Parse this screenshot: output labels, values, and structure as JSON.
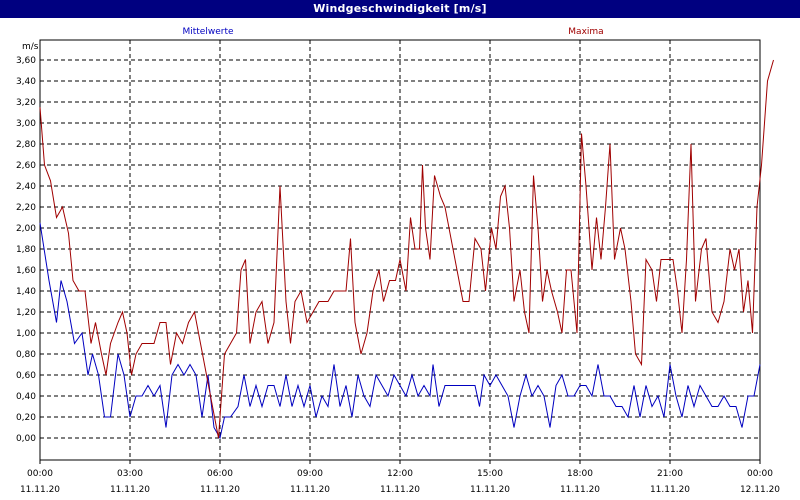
{
  "window": {
    "title": "Windgeschwindigkeit [m/s]"
  },
  "chart_data": {
    "type": "line",
    "title": "Windgeschwindigkeit [m/s]",
    "ylabel": "m/s",
    "ylim": [
      0,
      3.6
    ],
    "xlim": [
      0,
      24
    ],
    "grid": true,
    "legend": "top",
    "y_ticks": [
      "0,00",
      "0,20",
      "0,40",
      "0,60",
      "0,80",
      "1,00",
      "1,20",
      "1,40",
      "1,60",
      "1,80",
      "2,00",
      "2,20",
      "2,40",
      "2,60",
      "2,80",
      "3,00",
      "3,20",
      "3,40",
      "3,60"
    ],
    "x_ticks": [
      {
        "time": "00:00",
        "date": "11.11.20"
      },
      {
        "time": "03:00",
        "date": "11.11.20"
      },
      {
        "time": "06:00",
        "date": "11.11.20"
      },
      {
        "time": "09:00",
        "date": "11.11.20"
      },
      {
        "time": "12:00",
        "date": "11.11.20"
      },
      {
        "time": "15:00",
        "date": "11.11.20"
      },
      {
        "time": "18:00",
        "date": "11.11.20"
      },
      {
        "time": "21:00",
        "date": "11.11.20"
      },
      {
        "time": "00:00",
        "date": "12.11.20"
      }
    ],
    "series": [
      {
        "name": "Mittelwerte",
        "color": "#0000c0",
        "points": [
          [
            0,
            2.05
          ],
          [
            0.3,
            1.5
          ],
          [
            0.55,
            1.1
          ],
          [
            0.7,
            1.5
          ],
          [
            0.9,
            1.3
          ],
          [
            1.15,
            0.9
          ],
          [
            1.4,
            1.0
          ],
          [
            1.6,
            0.6
          ],
          [
            1.75,
            0.8
          ],
          [
            1.95,
            0.6
          ],
          [
            2.15,
            0.2
          ],
          [
            2.35,
            0.2
          ],
          [
            2.6,
            0.8
          ],
          [
            2.8,
            0.6
          ],
          [
            3.0,
            0.2
          ],
          [
            3.2,
            0.4
          ],
          [
            3.4,
            0.4
          ],
          [
            3.6,
            0.5
          ],
          [
            3.8,
            0.4
          ],
          [
            4.0,
            0.5
          ],
          [
            4.2,
            0.1
          ],
          [
            4.4,
            0.6
          ],
          [
            4.6,
            0.7
          ],
          [
            4.8,
            0.6
          ],
          [
            5.0,
            0.7
          ],
          [
            5.2,
            0.6
          ],
          [
            5.4,
            0.2
          ],
          [
            5.6,
            0.6
          ],
          [
            5.8,
            0.1
          ],
          [
            6.0,
            0.0
          ],
          [
            6.15,
            0.2
          ],
          [
            6.35,
            0.2
          ],
          [
            6.6,
            0.3
          ],
          [
            6.8,
            0.6
          ],
          [
            7.0,
            0.3
          ],
          [
            7.2,
            0.5
          ],
          [
            7.4,
            0.3
          ],
          [
            7.6,
            0.5
          ],
          [
            7.8,
            0.5
          ],
          [
            8.0,
            0.3
          ],
          [
            8.2,
            0.6
          ],
          [
            8.4,
            0.3
          ],
          [
            8.6,
            0.5
          ],
          [
            8.8,
            0.3
          ],
          [
            9.0,
            0.5
          ],
          [
            9.2,
            0.2
          ],
          [
            9.4,
            0.4
          ],
          [
            9.6,
            0.3
          ],
          [
            9.8,
            0.7
          ],
          [
            10.0,
            0.3
          ],
          [
            10.2,
            0.5
          ],
          [
            10.4,
            0.2
          ],
          [
            10.6,
            0.6
          ],
          [
            10.8,
            0.4
          ],
          [
            11.0,
            0.3
          ],
          [
            11.2,
            0.6
          ],
          [
            11.4,
            0.5
          ],
          [
            11.6,
            0.4
          ],
          [
            11.8,
            0.6
          ],
          [
            12.0,
            0.5
          ],
          [
            12.2,
            0.4
          ],
          [
            12.4,
            0.6
          ],
          [
            12.6,
            0.4
          ],
          [
            12.8,
            0.5
          ],
          [
            13.0,
            0.4
          ],
          [
            13.1,
            0.7
          ],
          [
            13.3,
            0.3
          ],
          [
            13.5,
            0.5
          ],
          [
            14.0,
            0.5
          ],
          [
            14.5,
            0.5
          ],
          [
            14.65,
            0.3
          ],
          [
            14.8,
            0.6
          ],
          [
            15.0,
            0.5
          ],
          [
            15.2,
            0.6
          ],
          [
            15.4,
            0.5
          ],
          [
            15.6,
            0.4
          ],
          [
            15.8,
            0.1
          ],
          [
            16.0,
            0.4
          ],
          [
            16.2,
            0.6
          ],
          [
            16.4,
            0.4
          ],
          [
            16.6,
            0.5
          ],
          [
            16.8,
            0.4
          ],
          [
            17.0,
            0.1
          ],
          [
            17.2,
            0.5
          ],
          [
            17.4,
            0.6
          ],
          [
            17.6,
            0.4
          ],
          [
            17.8,
            0.4
          ],
          [
            18.0,
            0.5
          ],
          [
            18.2,
            0.5
          ],
          [
            18.4,
            0.4
          ],
          [
            18.6,
            0.7
          ],
          [
            18.8,
            0.4
          ],
          [
            19.0,
            0.4
          ],
          [
            19.2,
            0.3
          ],
          [
            19.4,
            0.3
          ],
          [
            19.6,
            0.2
          ],
          [
            19.8,
            0.5
          ],
          [
            20.0,
            0.2
          ],
          [
            20.2,
            0.5
          ],
          [
            20.4,
            0.3
          ],
          [
            20.6,
            0.4
          ],
          [
            20.8,
            0.2
          ],
          [
            21.0,
            0.7
          ],
          [
            21.2,
            0.4
          ],
          [
            21.4,
            0.2
          ],
          [
            21.6,
            0.5
          ],
          [
            21.8,
            0.3
          ],
          [
            22.0,
            0.5
          ],
          [
            22.2,
            0.4
          ],
          [
            22.4,
            0.3
          ],
          [
            22.6,
            0.3
          ],
          [
            22.8,
            0.4
          ],
          [
            23.0,
            0.3
          ],
          [
            23.2,
            0.3
          ],
          [
            23.4,
            0.1
          ],
          [
            23.6,
            0.4
          ],
          [
            23.8,
            0.4
          ],
          [
            24.0,
            0.7
          ]
        ]
      },
      {
        "name": "Maxima",
        "color": "#a00000",
        "points": [
          [
            0,
            3.15
          ],
          [
            0.15,
            2.6
          ],
          [
            0.35,
            2.45
          ],
          [
            0.55,
            2.1
          ],
          [
            0.75,
            2.2
          ],
          [
            0.95,
            1.95
          ],
          [
            1.1,
            1.5
          ],
          [
            1.3,
            1.4
          ],
          [
            1.5,
            1.4
          ],
          [
            1.7,
            0.9
          ],
          [
            1.85,
            1.1
          ],
          [
            2.05,
            0.8
          ],
          [
            2.2,
            0.6
          ],
          [
            2.35,
            0.9
          ],
          [
            2.6,
            1.1
          ],
          [
            2.75,
            1.2
          ],
          [
            2.9,
            1.0
          ],
          [
            3.05,
            0.6
          ],
          [
            3.2,
            0.8
          ],
          [
            3.4,
            0.9
          ],
          [
            3.6,
            0.9
          ],
          [
            3.8,
            0.9
          ],
          [
            4.0,
            1.1
          ],
          [
            4.2,
            1.1
          ],
          [
            4.35,
            0.7
          ],
          [
            4.55,
            1.0
          ],
          [
            4.75,
            0.9
          ],
          [
            4.95,
            1.1
          ],
          [
            5.15,
            1.2
          ],
          [
            5.35,
            0.9
          ],
          [
            5.55,
            0.6
          ],
          [
            5.75,
            0.3
          ],
          [
            5.95,
            0.0
          ],
          [
            6.15,
            0.8
          ],
          [
            6.35,
            0.9
          ],
          [
            6.55,
            1.0
          ],
          [
            6.7,
            1.6
          ],
          [
            6.85,
            1.7
          ],
          [
            7.0,
            0.9
          ],
          [
            7.2,
            1.2
          ],
          [
            7.4,
            1.3
          ],
          [
            7.6,
            0.9
          ],
          [
            7.8,
            1.1
          ],
          [
            8.0,
            2.4
          ],
          [
            8.2,
            1.3
          ],
          [
            8.35,
            0.9
          ],
          [
            8.5,
            1.3
          ],
          [
            8.7,
            1.4
          ],
          [
            8.9,
            1.1
          ],
          [
            9.1,
            1.2
          ],
          [
            9.3,
            1.3
          ],
          [
            9.6,
            1.3
          ],
          [
            9.8,
            1.4
          ],
          [
            10.0,
            1.4
          ],
          [
            10.2,
            1.4
          ],
          [
            10.35,
            1.9
          ],
          [
            10.5,
            1.1
          ],
          [
            10.7,
            0.8
          ],
          [
            10.9,
            1.0
          ],
          [
            11.1,
            1.4
          ],
          [
            11.3,
            1.6
          ],
          [
            11.45,
            1.3
          ],
          [
            11.65,
            1.5
          ],
          [
            11.85,
            1.5
          ],
          [
            12.0,
            1.7
          ],
          [
            12.2,
            1.4
          ],
          [
            12.35,
            2.1
          ],
          [
            12.5,
            1.8
          ],
          [
            12.65,
            1.8
          ],
          [
            12.75,
            2.6
          ],
          [
            12.85,
            2.0
          ],
          [
            13.0,
            1.7
          ],
          [
            13.15,
            2.5
          ],
          [
            13.35,
            2.3
          ],
          [
            13.5,
            2.2
          ],
          [
            13.7,
            1.9
          ],
          [
            13.9,
            1.6
          ],
          [
            14.1,
            1.3
          ],
          [
            14.3,
            1.3
          ],
          [
            14.5,
            1.9
          ],
          [
            14.7,
            1.8
          ],
          [
            14.85,
            1.4
          ],
          [
            15.05,
            2.0
          ],
          [
            15.2,
            1.8
          ],
          [
            15.35,
            2.3
          ],
          [
            15.5,
            2.4
          ],
          [
            15.65,
            2.0
          ],
          [
            15.8,
            1.3
          ],
          [
            16.0,
            1.6
          ],
          [
            16.15,
            1.2
          ],
          [
            16.3,
            1.0
          ],
          [
            16.45,
            2.5
          ],
          [
            16.6,
            2.0
          ],
          [
            16.75,
            1.3
          ],
          [
            16.9,
            1.6
          ],
          [
            17.05,
            1.4
          ],
          [
            17.25,
            1.2
          ],
          [
            17.4,
            1.0
          ],
          [
            17.55,
            1.6
          ],
          [
            17.7,
            1.6
          ],
          [
            17.9,
            1.0
          ],
          [
            18.05,
            2.9
          ],
          [
            18.2,
            2.4
          ],
          [
            18.4,
            1.6
          ],
          [
            18.55,
            2.1
          ],
          [
            18.7,
            1.7
          ],
          [
            18.85,
            2.2
          ],
          [
            19.0,
            2.8
          ],
          [
            19.15,
            1.7
          ],
          [
            19.35,
            2.0
          ],
          [
            19.5,
            1.8
          ],
          [
            19.7,
            1.3
          ],
          [
            19.85,
            0.8
          ],
          [
            20.05,
            0.7
          ],
          [
            20.2,
            1.7
          ],
          [
            20.4,
            1.6
          ],
          [
            20.55,
            1.3
          ],
          [
            20.7,
            1.7
          ],
          [
            20.9,
            1.7
          ],
          [
            21.1,
            1.7
          ],
          [
            21.25,
            1.4
          ],
          [
            21.4,
            1.0
          ],
          [
            21.55,
            1.7
          ],
          [
            21.7,
            2.8
          ],
          [
            21.85,
            1.3
          ],
          [
            22.05,
            1.8
          ],
          [
            22.2,
            1.9
          ],
          [
            22.4,
            1.2
          ],
          [
            22.6,
            1.1
          ],
          [
            22.8,
            1.3
          ],
          [
            23.0,
            1.8
          ],
          [
            23.15,
            1.6
          ],
          [
            23.3,
            1.8
          ],
          [
            23.45,
            1.2
          ],
          [
            23.6,
            1.5
          ],
          [
            23.75,
            1.0
          ],
          [
            23.9,
            2.2
          ],
          [
            24.05,
            2.6
          ],
          [
            24.25,
            3.4
          ],
          [
            24.45,
            3.6
          ]
        ]
      }
    ]
  }
}
